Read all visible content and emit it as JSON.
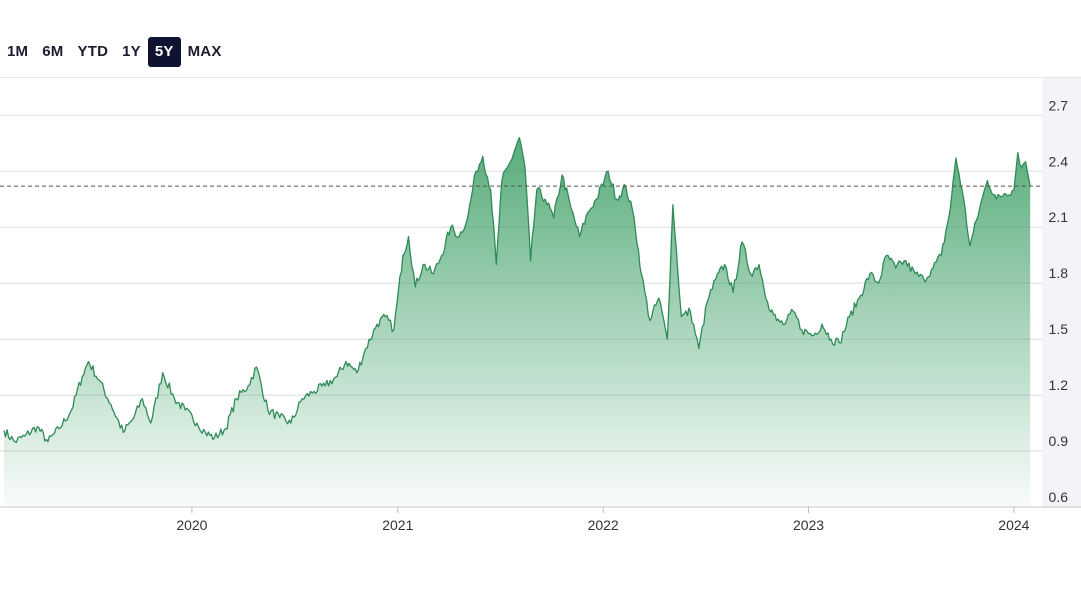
{
  "range_selector": {
    "options": [
      "1M",
      "6M",
      "YTD",
      "1Y",
      "5Y",
      "MAX"
    ],
    "active": "5Y"
  },
  "colors": {
    "line": "#2e8b57",
    "fill_top": "#3a9d63",
    "gridline": "#dcdce2",
    "reference_line": "#555555",
    "axis_text": "#333333",
    "active_button_bg": "#0f1230"
  },
  "chart_data": {
    "type": "area",
    "title": "",
    "xlabel": "",
    "ylabel": "",
    "x_ticks": [
      "2020",
      "2021",
      "2022",
      "2023",
      "2024"
    ],
    "y_ticks": [
      0.6,
      0.9,
      1.2,
      1.5,
      1.8,
      2.1,
      2.4,
      2.7
    ],
    "ylim": [
      0.6,
      2.9
    ],
    "xlim": [
      "2019-02-01",
      "2024-02-20"
    ],
    "reference_line": 2.32,
    "grid": "horizontal",
    "series": [
      {
        "points": [
          [
            "2019-02-01",
            1.01
          ],
          [
            "2019-02-20",
            0.95
          ],
          [
            "2019-03-10",
            0.98
          ],
          [
            "2019-04-01",
            1.03
          ],
          [
            "2019-04-20",
            0.95
          ],
          [
            "2019-05-10",
            1.02
          ],
          [
            "2019-06-01",
            1.12
          ],
          [
            "2019-06-20",
            1.3
          ],
          [
            "2019-07-01",
            1.38
          ],
          [
            "2019-07-20",
            1.28
          ],
          [
            "2019-08-10",
            1.15
          ],
          [
            "2019-09-01",
            1.0
          ],
          [
            "2019-09-20",
            1.08
          ],
          [
            "2019-10-05",
            1.18
          ],
          [
            "2019-10-20",
            1.05
          ],
          [
            "2019-11-10",
            1.32
          ],
          [
            "2019-12-01",
            1.18
          ],
          [
            "2019-12-20",
            1.12
          ],
          [
            "2020-01-10",
            1.05
          ],
          [
            "2020-01-25",
            1.0
          ],
          [
            "2020-02-10",
            0.97
          ],
          [
            "2020-03-01",
            1.02
          ],
          [
            "2020-03-20",
            1.18
          ],
          [
            "2020-04-10",
            1.25
          ],
          [
            "2020-04-25",
            1.35
          ],
          [
            "2020-05-15",
            1.12
          ],
          [
            "2020-06-05",
            1.08
          ],
          [
            "2020-06-25",
            1.05
          ],
          [
            "2020-07-15",
            1.18
          ],
          [
            "2020-08-05",
            1.22
          ],
          [
            "2020-08-25",
            1.25
          ],
          [
            "2020-09-15",
            1.3
          ],
          [
            "2020-10-01",
            1.38
          ],
          [
            "2020-10-20",
            1.32
          ],
          [
            "2020-11-05",
            1.45
          ],
          [
            "2020-11-25",
            1.58
          ],
          [
            "2020-12-10",
            1.62
          ],
          [
            "2020-12-25",
            1.55
          ],
          [
            "2021-01-10",
            1.95
          ],
          [
            "2021-01-20",
            2.05
          ],
          [
            "2021-02-01",
            1.78
          ],
          [
            "2021-02-15",
            1.9
          ],
          [
            "2021-03-05",
            1.85
          ],
          [
            "2021-03-20",
            1.95
          ],
          [
            "2021-04-05",
            2.1
          ],
          [
            "2021-04-20",
            2.05
          ],
          [
            "2021-05-05",
            2.15
          ],
          [
            "2021-05-20",
            2.4
          ],
          [
            "2021-06-01",
            2.48
          ],
          [
            "2021-06-15",
            2.3
          ],
          [
            "2021-06-25",
            1.9
          ],
          [
            "2021-07-05",
            2.35
          ],
          [
            "2021-07-20",
            2.45
          ],
          [
            "2021-08-05",
            2.58
          ],
          [
            "2021-08-15",
            2.42
          ],
          [
            "2021-08-25",
            1.92
          ],
          [
            "2021-09-05",
            2.3
          ],
          [
            "2021-09-20",
            2.25
          ],
          [
            "2021-10-05",
            2.15
          ],
          [
            "2021-10-20",
            2.38
          ],
          [
            "2021-11-05",
            2.2
          ],
          [
            "2021-11-20",
            2.05
          ],
          [
            "2021-12-05",
            2.18
          ],
          [
            "2021-12-20",
            2.25
          ],
          [
            "2022-01-10",
            2.4
          ],
          [
            "2022-01-25",
            2.25
          ],
          [
            "2022-02-10",
            2.32
          ],
          [
            "2022-02-25",
            2.15
          ],
          [
            "2022-03-10",
            1.85
          ],
          [
            "2022-03-25",
            1.6
          ],
          [
            "2022-04-10",
            1.72
          ],
          [
            "2022-04-25",
            1.5
          ],
          [
            "2022-05-05",
            2.22
          ],
          [
            "2022-05-20",
            1.62
          ],
          [
            "2022-06-05",
            1.65
          ],
          [
            "2022-06-20",
            1.45
          ],
          [
            "2022-07-05",
            1.7
          ],
          [
            "2022-07-20",
            1.82
          ],
          [
            "2022-08-05",
            1.9
          ],
          [
            "2022-08-20",
            1.75
          ],
          [
            "2022-09-05",
            2.02
          ],
          [
            "2022-09-20",
            1.85
          ],
          [
            "2022-10-05",
            1.9
          ],
          [
            "2022-10-20",
            1.7
          ],
          [
            "2022-11-05",
            1.6
          ],
          [
            "2022-11-20",
            1.58
          ],
          [
            "2022-12-05",
            1.65
          ],
          [
            "2022-12-20",
            1.55
          ],
          [
            "2023-01-10",
            1.52
          ],
          [
            "2023-01-25",
            1.58
          ],
          [
            "2023-02-10",
            1.5
          ],
          [
            "2023-02-25",
            1.48
          ],
          [
            "2023-03-15",
            1.62
          ],
          [
            "2023-04-01",
            1.72
          ],
          [
            "2023-04-20",
            1.85
          ],
          [
            "2023-05-05",
            1.8
          ],
          [
            "2023-05-20",
            1.95
          ],
          [
            "2023-06-05",
            1.88
          ],
          [
            "2023-06-20",
            1.92
          ],
          [
            "2023-07-10",
            1.85
          ],
          [
            "2023-07-25",
            1.82
          ],
          [
            "2023-08-10",
            1.88
          ],
          [
            "2023-08-25",
            1.95
          ],
          [
            "2023-09-10",
            2.2
          ],
          [
            "2023-09-20",
            2.47
          ],
          [
            "2023-10-01",
            2.3
          ],
          [
            "2023-10-15",
            2.0
          ],
          [
            "2023-11-01",
            2.2
          ],
          [
            "2023-11-15",
            2.35
          ],
          [
            "2023-12-01",
            2.25
          ],
          [
            "2023-12-15",
            2.28
          ],
          [
            "2024-01-01",
            2.3
          ],
          [
            "2024-01-08",
            2.5
          ],
          [
            "2024-01-15",
            2.42
          ],
          [
            "2024-01-22",
            2.45
          ],
          [
            "2024-01-30",
            2.32
          ]
        ]
      }
    ]
  }
}
